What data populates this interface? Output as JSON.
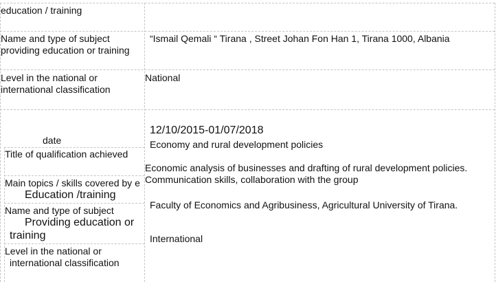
{
  "rows": [
    {
      "label": "education / training",
      "value": ""
    },
    {
      "label_lines": [
        "Name and type of subject",
        "providing education or training"
      ],
      "value": "“Ismail Qemali “ Tirana , Street Johan Fon Han 1, Tirana 1000, Albania"
    },
    {
      "label_lines": [
        "Level in the national or",
        "international classification"
      ],
      "value": "National"
    }
  ],
  "second_entry": {
    "date_label": "date",
    "date_value": "12/10/2015-01/07/2018",
    "qualification_label": "Title of qualification achieved",
    "qualification_value": "Economy and rural development policies",
    "topics_label_1": "Main topics / skills covered by e",
    "topics_label_2": "Education /training",
    "topics_value_1": "Economic analysis of businesses and drafting of rural development policies.",
    "topics_value_2": "Communication skills, collaboration with the group",
    "provider_label_1": "Name and type of subject",
    "provider_label_2": "Providing education or",
    "provider_label_3": "training",
    "provider_value": "Faculty of Economics and Agribusiness, Agricultural University of Tirana.",
    "level_label_1": "Level in the national or",
    "level_label_2": "international classification",
    "level_value": "International"
  }
}
